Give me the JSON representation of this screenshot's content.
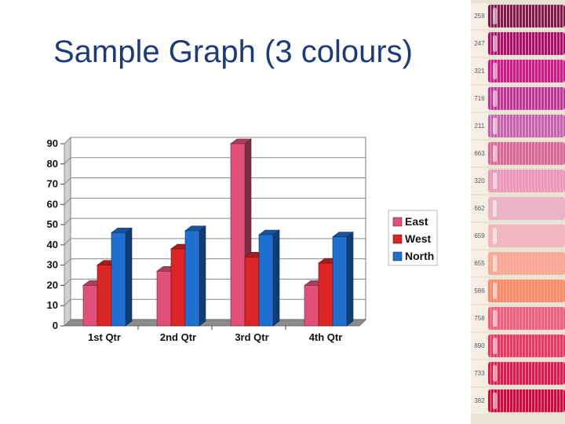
{
  "slide": {
    "title": "Sample Graph (3 colours)"
  },
  "chart_data": {
    "type": "bar",
    "style": "3d-clustered-column",
    "categories": [
      "1st Qtr",
      "2nd Qtr",
      "3rd Qtr",
      "4th Qtr"
    ],
    "series": [
      {
        "name": "East",
        "color": "#e2507a",
        "values": [
          20,
          27,
          90,
          20
        ]
      },
      {
        "name": "West",
        "color": "#dc2626",
        "values": [
          30,
          38,
          34,
          31
        ]
      },
      {
        "name": "North",
        "color": "#1e6fd0",
        "values": [
          46,
          47,
          45,
          44
        ]
      }
    ],
    "ylim": [
      0,
      90
    ],
    "yticks": [
      0,
      10,
      20,
      30,
      40,
      50,
      60,
      70,
      80,
      90
    ],
    "grid": true,
    "legend_position": "right"
  },
  "thread_strip": {
    "spools": [
      {
        "label": "259",
        "color": "#7a1f4a"
      },
      {
        "label": "247",
        "color": "#a3155e"
      },
      {
        "label": "321",
        "color": "#c81e7e"
      },
      {
        "label": "716",
        "color": "#b73a8c"
      },
      {
        "label": "211",
        "color": "#c066a8"
      },
      {
        "label": "663",
        "color": "#d46a92"
      },
      {
        "label": "320",
        "color": "#e79bb8"
      },
      {
        "label": "662",
        "color": "#eab3c6"
      },
      {
        "label": "659",
        "color": "#f2b6bf"
      },
      {
        "label": "655",
        "color": "#f7a795"
      },
      {
        "label": "586",
        "color": "#f58a6a"
      },
      {
        "label": "758",
        "color": "#ee5f7a"
      },
      {
        "label": "890",
        "color": "#e53a5f"
      },
      {
        "label": "733",
        "color": "#d81e4a"
      },
      {
        "label": "382",
        "color": "#c8103c"
      }
    ]
  }
}
